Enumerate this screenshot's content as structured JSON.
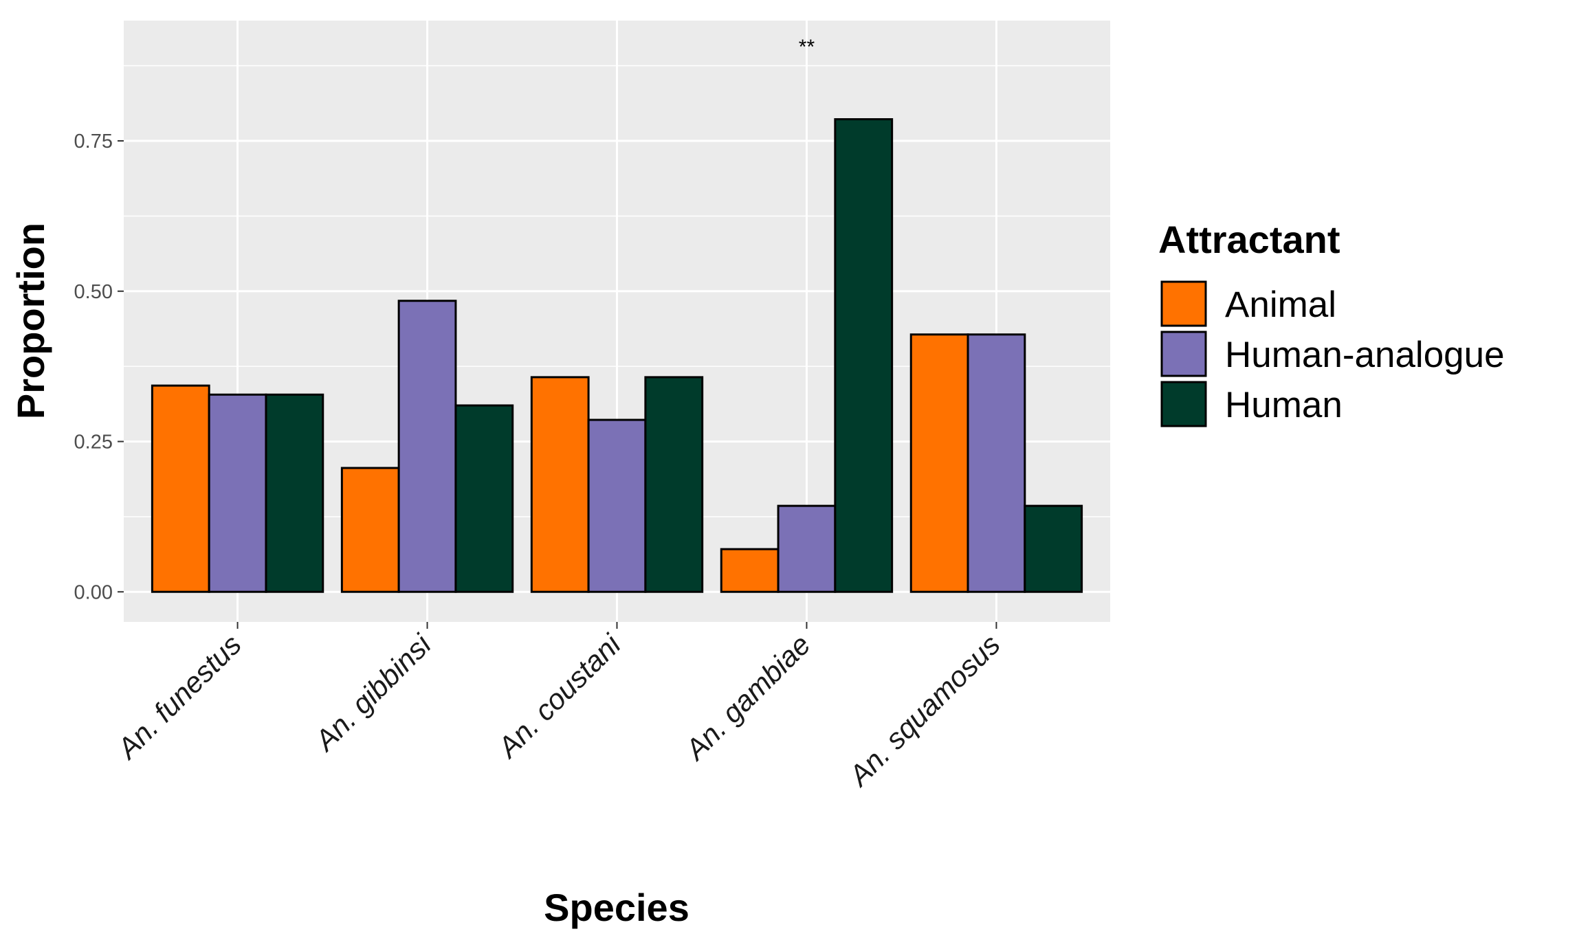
{
  "chart_data": {
    "type": "bar",
    "xlabel": "Species",
    "ylabel": "Proportion",
    "categories": [
      "An. funestus",
      "An. gibbinsi",
      "An. coustani",
      "An. gambiae",
      "An. squamosus"
    ],
    "series": [
      {
        "name": "Animal",
        "color": "#ff7200",
        "values": [
          0.343,
          0.206,
          0.357,
          0.071,
          0.428
        ]
      },
      {
        "name": "Human-analogue",
        "color": "#7b71b6",
        "values": [
          0.328,
          0.484,
          0.286,
          0.143,
          0.428
        ]
      },
      {
        "name": "Human",
        "color": "#003b2b",
        "values": [
          0.328,
          0.31,
          0.357,
          0.786,
          0.143
        ]
      }
    ],
    "ylim": [
      -0.05,
      0.95
    ],
    "yticks": [
      0.0,
      0.25,
      0.5,
      0.75
    ],
    "ytick_labels": [
      "0.00",
      "0.25",
      "0.50",
      "0.75"
    ],
    "grid": true,
    "legend": {
      "title": "Attractant",
      "position": "right"
    },
    "annotations": [
      {
        "category": "An. gambiae",
        "text": "**"
      }
    ]
  },
  "colors": {
    "panel_bg": "#ebebeb",
    "grid": "#ffffff",
    "bar_outline": "#000000"
  }
}
